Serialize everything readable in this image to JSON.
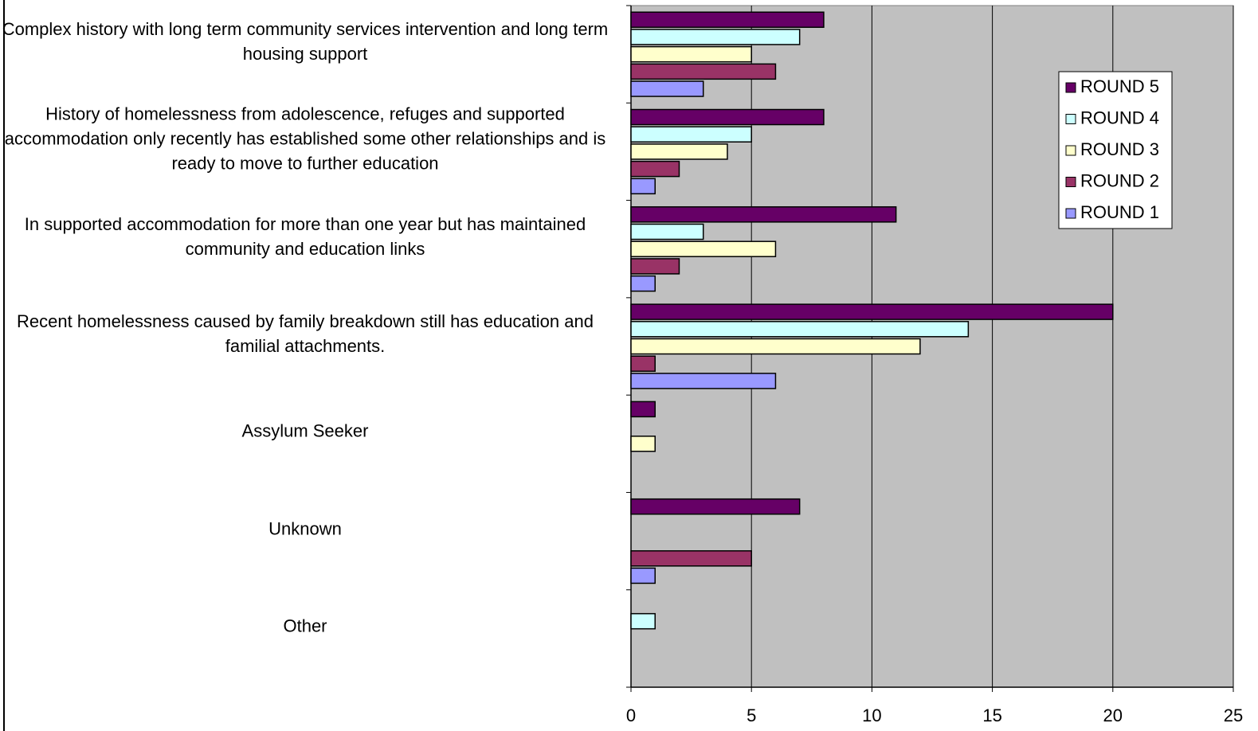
{
  "chart_data": {
    "type": "hbar",
    "categories": [
      "Complex history with long term community services intervention and long term housing support",
      "History of homelessness from adolescence, refuges and supported accommodation only recently has established some other relationships and is ready to move to further education",
      "In supported accommodation for more than one year but has maintained community and education links",
      "Recent homelessness caused by family breakdown still has education and familial attachments.",
      "Assylum Seeker",
      "Unknown",
      "Other"
    ],
    "series": [
      {
        "name": "ROUND 5",
        "color": "#660066",
        "values": [
          8,
          8,
          11,
          20,
          1,
          7,
          0
        ]
      },
      {
        "name": "ROUND 4",
        "color": "#ccffff",
        "values": [
          7,
          5,
          3,
          14,
          0,
          0,
          1
        ]
      },
      {
        "name": "ROUND 3",
        "color": "#ffffcc",
        "values": [
          5,
          4,
          6,
          12,
          1,
          0,
          0
        ]
      },
      {
        "name": "ROUND 2",
        "color": "#993366",
        "values": [
          6,
          2,
          2,
          1,
          0,
          5,
          0
        ]
      },
      {
        "name": "ROUND 1",
        "color": "#9999ff",
        "values": [
          3,
          1,
          1,
          6,
          0,
          1,
          0
        ]
      }
    ],
    "xlim": [
      0,
      25
    ],
    "xticks": [
      0,
      5,
      10,
      15,
      20,
      25
    ],
    "grid": true,
    "plot_background": "#c0c0c0",
    "legend": "upper right"
  }
}
